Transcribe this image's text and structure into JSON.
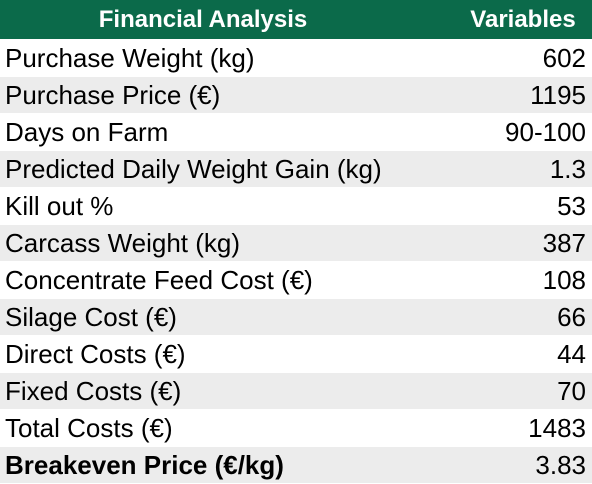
{
  "table": {
    "headers": [
      "Financial Analysis",
      "Variables"
    ],
    "rows": [
      {
        "label": "Purchase Weight (kg)",
        "value": "602"
      },
      {
        "label": "Purchase Price (€)",
        "value": "1195"
      },
      {
        "label": "Days on Farm",
        "value": "90-100"
      },
      {
        "label": "Predicted Daily Weight Gain (kg)",
        "value": "1.3"
      },
      {
        "label": "Kill out %",
        "value": "53"
      },
      {
        "label": "Carcass Weight (kg)",
        "value": "387"
      },
      {
        "label": "Concentrate Feed Cost (€)",
        "value": "108"
      },
      {
        "label": "Silage Cost (€)",
        "value": "66"
      },
      {
        "label": "Direct Costs (€)",
        "value": "44"
      },
      {
        "label": "Fixed Costs (€)",
        "value": "70"
      },
      {
        "label": "Total Costs (€)",
        "value": "1483"
      },
      {
        "label": "Breakeven Price (€/kg)",
        "value": "3.83"
      }
    ]
  },
  "colors": {
    "header_background": "#0b6a4a",
    "header_text": "#ffffff",
    "row_shade": "#ececec"
  }
}
